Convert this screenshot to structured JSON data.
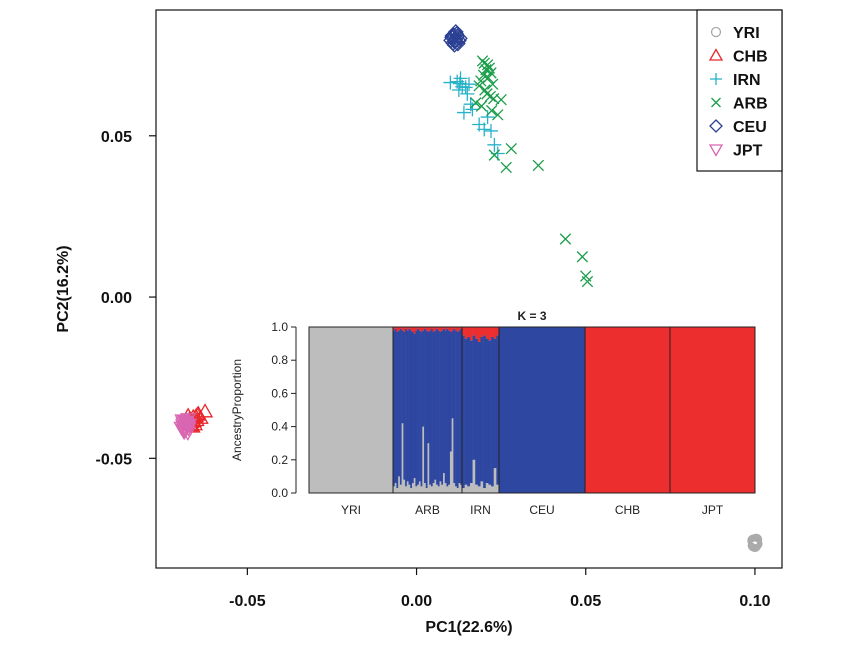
{
  "chart_data": [
    {
      "type": "scatter",
      "xlabel": "PC1(22.6%)",
      "ylabel": "PC2(16.2%)",
      "xlim": [
        -0.077,
        0.108
      ],
      "ylim": [
        -0.084,
        0.089
      ],
      "x_ticks": [
        -0.05,
        0.0,
        0.05,
        0.1
      ],
      "x_tick_labels": [
        "-0.05",
        "0.00",
        "0.05",
        "0.10"
      ],
      "y_ticks": [
        -0.05,
        0.0,
        0.05
      ],
      "y_tick_labels": [
        "-0.05",
        "0.00",
        "0.05"
      ],
      "legend_position": "top-right",
      "series": [
        {
          "name": "YRI",
          "marker": "circle",
          "color": "#aaaaaa",
          "x": [
            0.0995,
            0.1,
            0.1005,
            0.0998,
            0.1002,
            0.0996,
            0.1004,
            0.0999,
            0.1001,
            0.0997,
            0.1003,
            0.1,
            0.0998,
            0.1002,
            0.1001,
            0.0999
          ],
          "y": [
            -0.0755,
            -0.076,
            -0.0765,
            -0.0758,
            -0.0762,
            -0.077,
            -0.0752,
            -0.0768,
            -0.0757,
            -0.0763,
            -0.0756,
            -0.0772,
            -0.0761,
            -0.0766,
            -0.0759,
            -0.0754
          ]
        },
        {
          "name": "CHB",
          "marker": "triangle-up",
          "color": "#e8262a",
          "x": [
            -0.0625,
            -0.0645,
            -0.066,
            -0.0675,
            -0.065,
            -0.0665,
            -0.0655,
            -0.067,
            -0.0638,
            -0.0668,
            -0.0658,
            -0.0648,
            -0.0678,
            -0.0662,
            -0.0652,
            -0.0672
          ],
          "y": [
            -0.0355,
            -0.0362,
            -0.0372,
            -0.0368,
            -0.0382,
            -0.0388,
            -0.0395,
            -0.0378,
            -0.0375,
            -0.0398,
            -0.0385,
            -0.0365,
            -0.0392,
            -0.0402,
            -0.037,
            -0.0381
          ]
        },
        {
          "name": "IRN",
          "marker": "plus",
          "color": "#27b2c8",
          "x": [
            0.01,
            0.012,
            0.0135,
            0.0145,
            0.0125,
            0.013,
            0.0155,
            0.015,
            0.016,
            0.0165,
            0.014,
            0.0185,
            0.02,
            0.022,
            0.023,
            0.024,
            0.021,
            0.0128
          ],
          "y": [
            0.0665,
            0.0668,
            0.0652,
            0.065,
            0.0642,
            0.0678,
            0.066,
            0.063,
            0.0598,
            0.0582,
            0.0572,
            0.0535,
            0.052,
            0.0515,
            0.0472,
            0.0445,
            0.0558,
            0.0662
          ]
        },
        {
          "name": "ARB",
          "marker": "x",
          "color": "#1a9e4a",
          "x": [
            0.0195,
            0.02,
            0.021,
            0.0205,
            0.0215,
            0.022,
            0.0198,
            0.0212,
            0.019,
            0.0185,
            0.0225,
            0.0202,
            0.0208,
            0.0218,
            0.0228,
            0.025,
            0.0175,
            0.0192,
            0.0222,
            0.024,
            0.028,
            0.023,
            0.0265,
            0.036,
            0.044,
            0.049,
            0.05,
            0.0505
          ],
          "y": [
            0.0732,
            0.0725,
            0.072,
            0.0705,
            0.071,
            0.0695,
            0.0688,
            0.068,
            0.067,
            0.0655,
            0.066,
            0.0642,
            0.063,
            0.0622,
            0.0615,
            0.0612,
            0.0602,
            0.0592,
            0.0578,
            0.0565,
            0.046,
            0.044,
            0.0402,
            0.0408,
            0.018,
            0.0125,
            0.0065,
            0.0048
          ]
        },
        {
          "name": "CEU",
          "marker": "diamond",
          "color": "#2b3f93",
          "x": [
            0.0105,
            0.011,
            0.0115,
            0.012,
            0.0125,
            0.0108,
            0.0118,
            0.0112,
            0.0128,
            0.0102,
            0.0116,
            0.0122,
            0.0106,
            0.0113
          ],
          "y": [
            0.0805,
            0.0812,
            0.0798,
            0.0808,
            0.0795,
            0.0788,
            0.0815,
            0.0782,
            0.0802,
            0.0796,
            0.0822,
            0.0786,
            0.081,
            0.0792
          ]
        },
        {
          "name": "JPT",
          "marker": "triangle-down",
          "color": "#d966b3",
          "x": [
            -0.0675,
            -0.0685,
            -0.068,
            -0.069,
            -0.0678,
            -0.0688,
            -0.0682,
            -0.0672,
            -0.0695,
            -0.0686,
            -0.0676,
            -0.0692,
            -0.0683,
            -0.0679,
            -0.0689,
            -0.0674,
            -0.0687,
            -0.0681
          ],
          "y": [
            -0.0378,
            -0.0385,
            -0.0392,
            -0.0398,
            -0.0402,
            -0.041,
            -0.0388,
            -0.0395,
            -0.0405,
            -0.0415,
            -0.042,
            -0.0382,
            -0.0412,
            -0.0399,
            -0.0391,
            -0.0407,
            -0.0418,
            -0.0386
          ]
        }
      ]
    },
    {
      "type": "bar",
      "title": "K = 3",
      "ylabel": "AncestryProportion",
      "ylim": [
        0,
        1.0
      ],
      "y_tick_labels": [
        "0.0",
        "0.2",
        "0.4",
        "0.6",
        "0.8",
        "1.0"
      ],
      "categories": [
        "YRI",
        "ARB",
        "IRN",
        "CEU",
        "CHB",
        "JPT"
      ],
      "series": [
        {
          "name": "",
          "color": "#bdbdbd",
          "values": [
            1.0,
            0.05,
            0.03,
            0.0,
            0.0,
            0.0
          ]
        },
        {
          "name": "",
          "color": "#2e47a0",
          "values": [
            0.0,
            0.94,
            0.9,
            1.0,
            0.0,
            0.0
          ]
        },
        {
          "name": "",
          "color": "#ec2e2f",
          "values": [
            0.0,
            0.01,
            0.07,
            0.0,
            1.0,
            1.0
          ]
        }
      ],
      "arb_gray_profile": [
        0.04,
        0.06,
        0.03,
        0.1,
        0.05,
        0.42,
        0.08,
        0.04,
        0.07,
        0.05,
        0.03,
        0.06,
        0.09,
        0.04,
        0.05,
        0.07,
        0.04,
        0.4,
        0.06,
        0.03,
        0.3,
        0.05,
        0.04,
        0.06,
        0.08,
        0.05,
        0.04,
        0.07,
        0.05,
        0.12,
        0.06,
        0.04,
        0.05,
        0.25,
        0.45,
        0.06,
        0.04,
        0.03,
        0.06,
        0.05
      ],
      "arb_red_profile": [
        0.02,
        0.01,
        0.03,
        0.02,
        0.01,
        0.02,
        0.03,
        0.01,
        0.02,
        0.01,
        0.02,
        0.03,
        0.04,
        0.02,
        0.01,
        0.02,
        0.03,
        0.02,
        0.01,
        0.02,
        0.03,
        0.02,
        0.01,
        0.03,
        0.02,
        0.01,
        0.02,
        0.03,
        0.02,
        0.01,
        0.02,
        0.01,
        0.02,
        0.03,
        0.02,
        0.01,
        0.02,
        0.03,
        0.02,
        0.01
      ],
      "irn_gray_profile": [
        0.03,
        0.05,
        0.04,
        0.06,
        0.2,
        0.05,
        0.04,
        0.07,
        0.03,
        0.06,
        0.05,
        0.04,
        0.15,
        0.05
      ],
      "irn_red_profile": [
        0.05,
        0.07,
        0.06,
        0.08,
        0.05,
        0.07,
        0.09,
        0.06,
        0.05,
        0.07,
        0.08,
        0.06,
        0.07,
        0.05
      ]
    }
  ]
}
